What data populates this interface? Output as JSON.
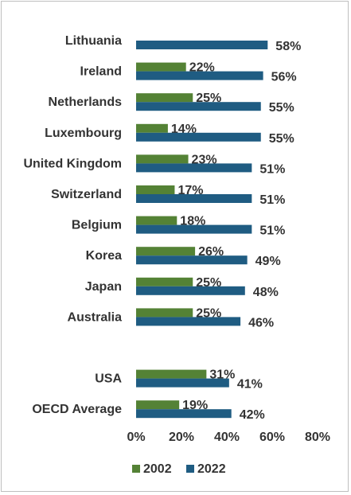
{
  "chart_data": {
    "type": "bar",
    "orientation": "horizontal",
    "categories": [
      "Lithuania",
      "Ireland",
      "Netherlands",
      "Luxembourg",
      "United Kingdom",
      "Switzerland",
      "Belgium",
      "Korea",
      "Japan",
      "Australia",
      "",
      "USA",
      "OECD Average"
    ],
    "series": [
      {
        "name": "2002",
        "color": "#548235",
        "values": [
          null,
          22,
          25,
          14,
          23,
          17,
          18,
          26,
          25,
          25,
          null,
          31,
          19
        ]
      },
      {
        "name": "2022",
        "color": "#1f5c82",
        "values": [
          58,
          56,
          55,
          55,
          51,
          51,
          51,
          49,
          48,
          46,
          null,
          41,
          42
        ]
      }
    ],
    "xlim": [
      0,
      80
    ],
    "xticks": [
      "0%",
      "20%",
      "40%",
      "60%",
      "80%"
    ],
    "value_suffix": "%",
    "grid": false,
    "legend_position": "bottom"
  }
}
